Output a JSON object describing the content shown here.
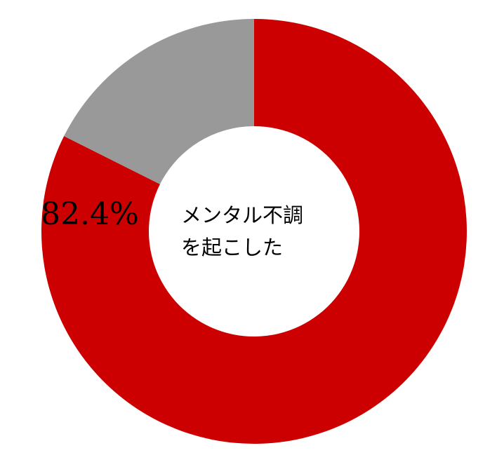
{
  "chart_data": {
    "type": "pie",
    "donut": true,
    "center_label": [
      "メンタル不調",
      "を起こした"
    ],
    "slices": [
      {
        "value": 82.4,
        "color": "#CC0000",
        "label": "82.4%"
      },
      {
        "value": 17.6,
        "color": "#999999",
        "label": ""
      }
    ],
    "start": "top",
    "direction": "clockwise"
  }
}
